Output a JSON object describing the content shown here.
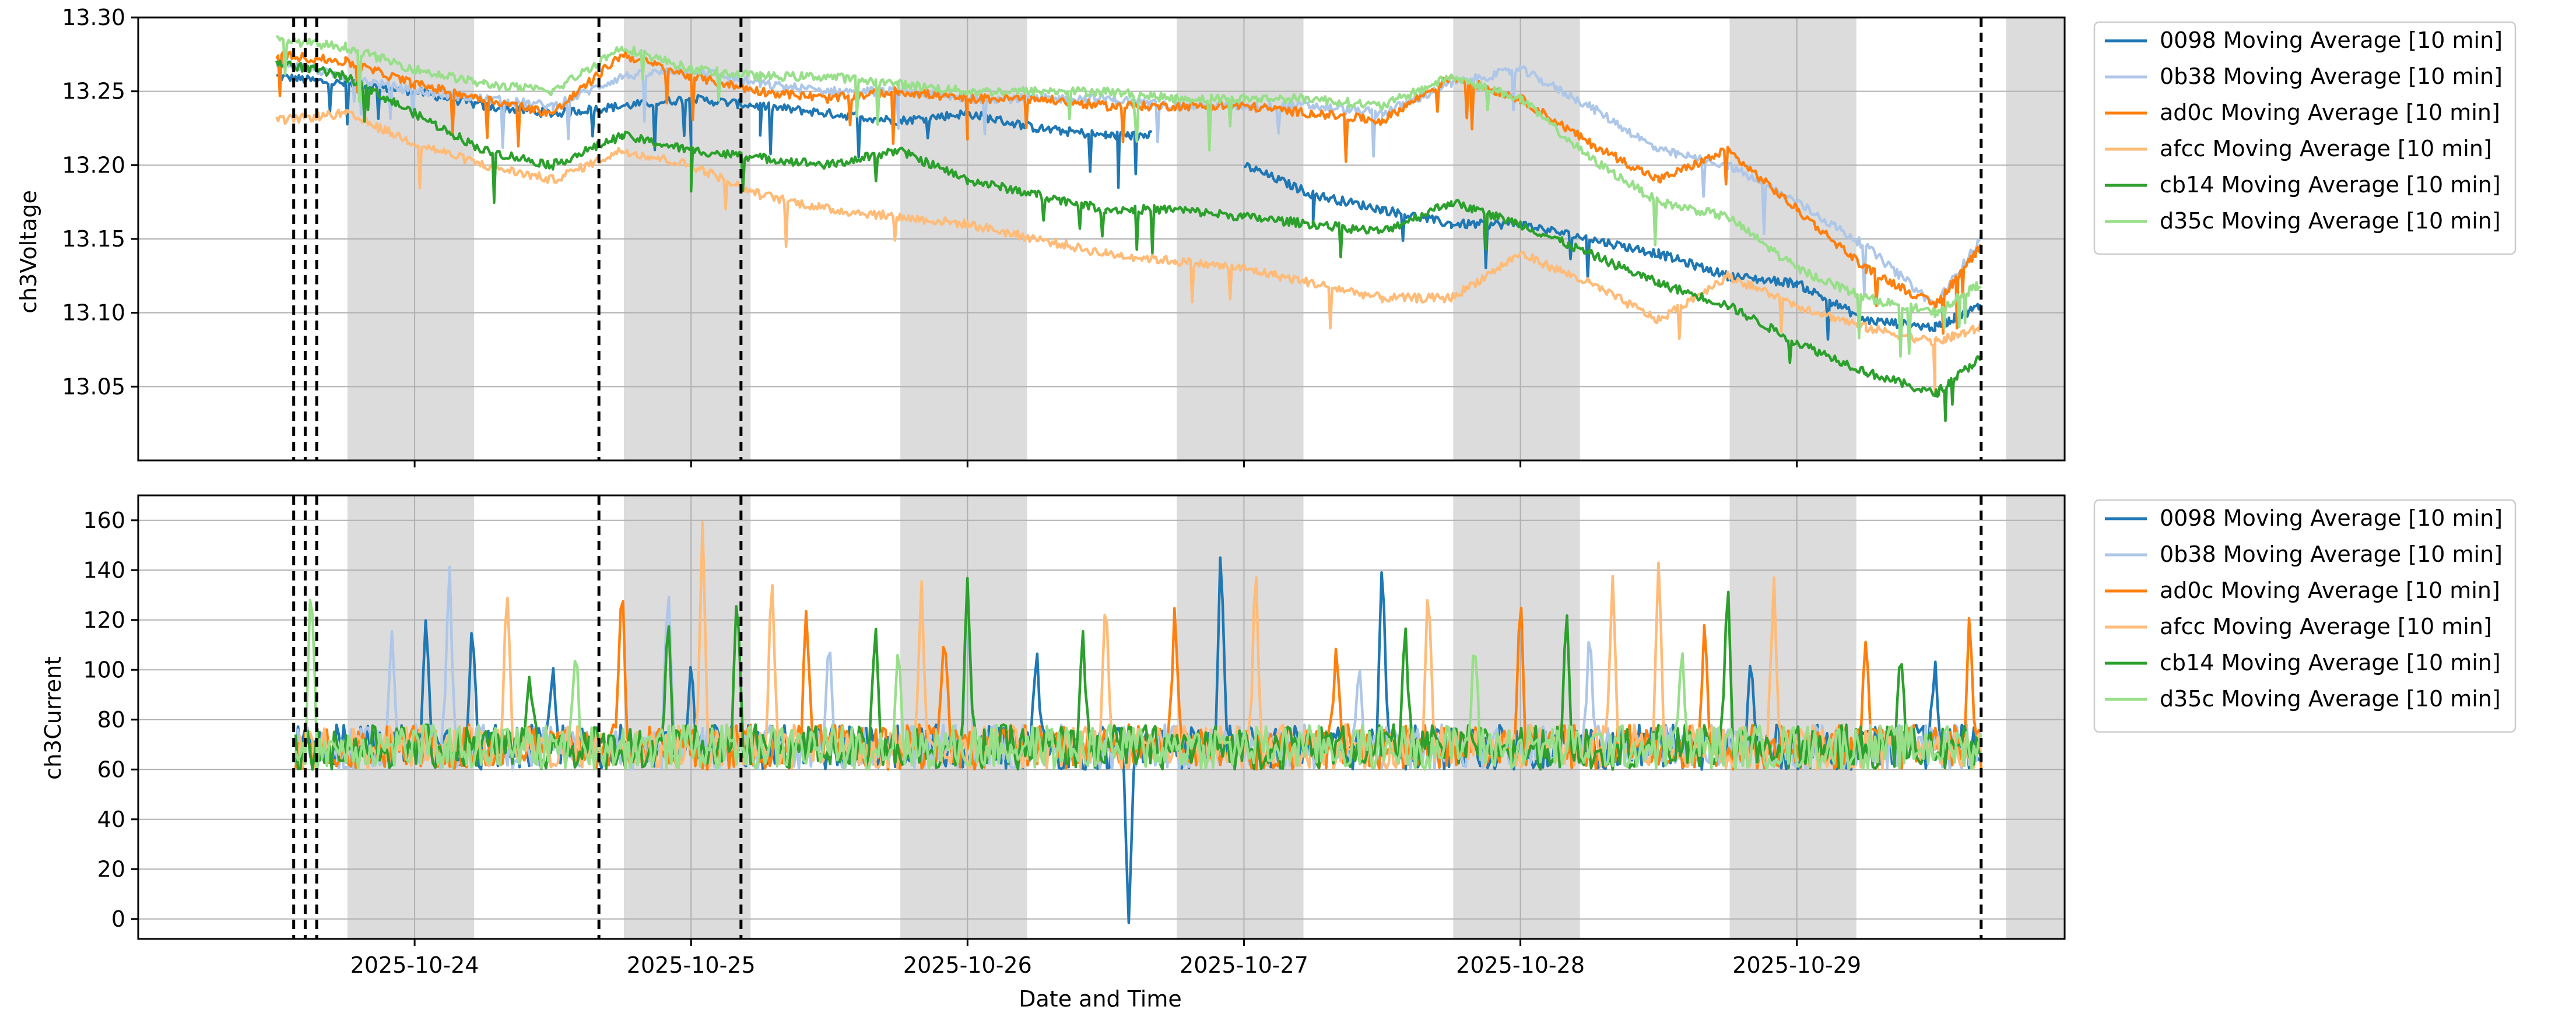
{
  "colors": {
    "0098": "#1f77b4",
    "0b38": "#aec7e8",
    "ad0c": "#ff7f0e",
    "afcc": "#ffbb78",
    "cb14": "#2ca02c",
    "d35c": "#98df8a",
    "night_shading": "#dcdcdc",
    "marker_line": "#000000",
    "grid": "#b0b0b0"
  },
  "chart_data": [
    {
      "type": "line",
      "ylabel": "ch3Voltage",
      "xlabel": "",
      "xlim": [
        "2025-10-23T00:00",
        "2025-10-29T23:15"
      ],
      "ylim": [
        13.0,
        13.3
      ],
      "yticks": [
        13.05,
        13.1,
        13.15,
        13.2,
        13.25,
        13.3
      ],
      "ytick_labels": [
        "13.05",
        "13.10",
        "13.15",
        "13.20",
        "13.25",
        "13.30"
      ],
      "grid": true,
      "legend_position": "outside-right-top",
      "series": [
        {
          "name": "0098 Moving Average [10 min]",
          "color_key": "0098",
          "x": [
            "2025-10-23T12:00",
            "2025-10-23T18:00",
            "2025-10-24T00:00",
            "2025-10-24T06:00",
            "2025-10-24T12:00",
            "2025-10-24T18:00",
            "2025-10-25T00:00",
            "2025-10-25T06:00",
            "2025-10-25T12:00",
            "2025-10-25T18:00",
            "2025-10-26T00:00",
            "2025-10-26T06:00",
            "2025-10-26T12:00",
            "2025-10-26T16:00",
            "2025-10-26T20:00",
            "2025-10-27T00:00",
            "2025-10-27T06:00",
            "2025-10-27T12:00",
            "2025-10-27T18:00",
            "2025-10-28T00:00",
            "2025-10-28T06:00",
            "2025-10-28T12:00",
            "2025-10-28T18:00",
            "2025-10-29T00:00",
            "2025-10-29T06:00",
            "2025-10-29T12:00",
            "2025-10-29T16:00"
          ],
          "y": [
            13.26,
            13.255,
            13.25,
            13.24,
            13.235,
            13.24,
            13.245,
            13.24,
            13.235,
            13.23,
            13.235,
            13.225,
            13.22,
            13.22,
            null,
            13.2,
            13.18,
            13.17,
            13.16,
            13.16,
            13.15,
            13.14,
            13.125,
            13.12,
            13.095,
            13.09,
            13.105
          ]
        },
        {
          "name": "0b38 Moving Average [10 min]",
          "color_key": "0b38",
          "x": [
            "2025-10-23T12:00",
            "2025-10-23T18:00",
            "2025-10-24T00:00",
            "2025-10-24T06:00",
            "2025-10-24T12:00",
            "2025-10-24T18:00",
            "2025-10-25T00:00",
            "2025-10-25T06:00",
            "2025-10-25T12:00",
            "2025-10-25T18:00",
            "2025-10-26T00:00",
            "2025-10-26T06:00",
            "2025-10-26T12:00",
            "2025-10-26T18:00",
            "2025-10-27T00:00",
            "2025-10-27T06:00",
            "2025-10-27T12:00",
            "2025-10-27T18:00",
            "2025-10-28T00:00",
            "2025-10-28T06:00",
            "2025-10-28T12:00",
            "2025-10-28T18:00",
            "2025-10-29T00:00",
            "2025-10-29T06:00",
            "2025-10-29T12:00",
            "2025-10-29T16:00"
          ],
          "y": [
            13.27,
            13.26,
            13.25,
            13.245,
            13.24,
            13.26,
            13.265,
            13.255,
            13.25,
            13.25,
            13.245,
            13.245,
            13.245,
            13.24,
            13.24,
            13.24,
            13.235,
            13.255,
            13.265,
            13.24,
            13.21,
            13.2,
            13.175,
            13.145,
            13.105,
            13.15
          ]
        },
        {
          "name": "ad0c Moving Average [10 min]",
          "color_key": "ad0c",
          "x": [
            "2025-10-23T12:00",
            "2025-10-23T18:00",
            "2025-10-24T00:00",
            "2025-10-24T06:00",
            "2025-10-24T12:00",
            "2025-10-24T18:00",
            "2025-10-25T00:00",
            "2025-10-25T06:00",
            "2025-10-25T12:00",
            "2025-10-25T18:00",
            "2025-10-26T00:00",
            "2025-10-26T06:00",
            "2025-10-26T12:00",
            "2025-10-26T18:00",
            "2025-10-27T00:00",
            "2025-10-27T06:00",
            "2025-10-27T12:00",
            "2025-10-27T18:00",
            "2025-10-28T00:00",
            "2025-10-28T06:00",
            "2025-10-28T12:00",
            "2025-10-28T18:00",
            "2025-10-29T00:00",
            "2025-10-29T06:00",
            "2025-10-29T12:00",
            "2025-10-29T16:00"
          ],
          "y": [
            13.275,
            13.27,
            13.255,
            13.245,
            13.235,
            13.275,
            13.26,
            13.25,
            13.245,
            13.25,
            13.245,
            13.245,
            13.24,
            13.24,
            13.24,
            13.235,
            13.23,
            13.26,
            13.245,
            13.215,
            13.19,
            13.21,
            13.17,
            13.13,
            13.105,
            13.145
          ]
        },
        {
          "name": "afcc Moving Average [10 min]",
          "color_key": "afcc",
          "x": [
            "2025-10-23T12:00",
            "2025-10-23T18:00",
            "2025-10-24T00:00",
            "2025-10-24T06:00",
            "2025-10-24T12:00",
            "2025-10-24T18:00",
            "2025-10-25T00:00",
            "2025-10-25T06:00",
            "2025-10-25T12:00",
            "2025-10-25T18:00",
            "2025-10-26T00:00",
            "2025-10-26T06:00",
            "2025-10-26T12:00",
            "2025-10-26T18:00",
            "2025-10-27T00:00",
            "2025-10-27T06:00",
            "2025-10-27T12:00",
            "2025-10-27T18:00",
            "2025-10-28T00:00",
            "2025-10-28T06:00",
            "2025-10-28T12:00",
            "2025-10-28T18:00",
            "2025-10-29T00:00",
            "2025-10-29T06:00",
            "2025-10-29T12:00",
            "2025-10-29T16:00"
          ],
          "y": [
            13.23,
            13.235,
            13.215,
            13.2,
            13.19,
            13.21,
            13.2,
            13.18,
            13.17,
            13.165,
            13.16,
            13.15,
            13.14,
            13.135,
            13.13,
            13.12,
            13.11,
            13.11,
            13.14,
            13.12,
            13.095,
            13.125,
            13.105,
            13.09,
            13.08,
            13.09
          ]
        },
        {
          "name": "cb14 Moving Average [10 min]",
          "color_key": "cb14",
          "x": [
            "2025-10-23T12:00",
            "2025-10-23T18:00",
            "2025-10-24T00:00",
            "2025-10-24T06:00",
            "2025-10-24T12:00",
            "2025-10-24T18:00",
            "2025-10-25T00:00",
            "2025-10-25T06:00",
            "2025-10-25T12:00",
            "2025-10-25T18:00",
            "2025-10-26T00:00",
            "2025-10-26T06:00",
            "2025-10-26T12:00",
            "2025-10-26T18:00",
            "2025-10-27T00:00",
            "2025-10-27T06:00",
            "2025-10-27T12:00",
            "2025-10-27T18:00",
            "2025-10-28T00:00",
            "2025-10-28T06:00",
            "2025-10-28T12:00",
            "2025-10-28T18:00",
            "2025-10-29T00:00",
            "2025-10-29T06:00",
            "2025-10-29T12:00",
            "2025-10-29T16:00"
          ],
          "y": [
            13.27,
            13.26,
            13.235,
            13.21,
            13.2,
            13.22,
            13.21,
            13.205,
            13.2,
            13.21,
            13.19,
            13.18,
            13.17,
            13.17,
            13.165,
            13.16,
            13.155,
            13.175,
            13.16,
            13.14,
            13.12,
            13.105,
            13.08,
            13.06,
            13.045,
            13.07
          ]
        },
        {
          "name": "d35c Moving Average [10 min]",
          "color_key": "d35c",
          "x": [
            "2025-10-23T12:00",
            "2025-10-23T18:00",
            "2025-10-24T00:00",
            "2025-10-24T06:00",
            "2025-10-24T12:00",
            "2025-10-24T18:00",
            "2025-10-25T00:00",
            "2025-10-25T06:00",
            "2025-10-25T12:00",
            "2025-10-25T18:00",
            "2025-10-26T00:00",
            "2025-10-26T06:00",
            "2025-10-26T12:00",
            "2025-10-26T18:00",
            "2025-10-27T00:00",
            "2025-10-27T06:00",
            "2025-10-27T12:00",
            "2025-10-27T18:00",
            "2025-10-28T00:00",
            "2025-10-28T06:00",
            "2025-10-28T12:00",
            "2025-10-28T18:00",
            "2025-10-29T00:00",
            "2025-10-29T06:00",
            "2025-10-29T12:00",
            "2025-10-29T16:00"
          ],
          "y": [
            13.285,
            13.28,
            13.265,
            13.255,
            13.25,
            13.28,
            13.265,
            13.26,
            13.26,
            13.255,
            13.25,
            13.25,
            13.25,
            13.245,
            13.245,
            13.245,
            13.24,
            13.26,
            13.245,
            13.205,
            13.175,
            13.165,
            13.13,
            13.11,
            13.1,
            13.12
          ]
        }
      ]
    },
    {
      "type": "line",
      "ylabel": "ch3Current",
      "xlabel": "Date and Time",
      "xlim": [
        "2025-10-23T00:00",
        "2025-10-29T23:15"
      ],
      "ylim": [
        -8,
        170
      ],
      "yticks": [
        0,
        20,
        40,
        60,
        80,
        100,
        120,
        140,
        160
      ],
      "ytick_labels": [
        "0",
        "20",
        "40",
        "60",
        "80",
        "100",
        "120",
        "140",
        "160"
      ],
      "grid": true,
      "legend_position": "outside-right-top",
      "baseline_range": [
        60,
        78
      ],
      "series": [
        {
          "name": "0098 Moving Average [10 min]",
          "color_key": "0098",
          "spikes": [
            [
              "2025-10-24T01:00",
              125
            ],
            [
              "2025-10-24T05:00",
              122
            ],
            [
              "2025-10-24T12:00",
              103
            ],
            [
              "2025-10-25T00:00",
              105
            ],
            [
              "2025-10-26T06:00",
              110
            ],
            [
              "2025-10-26T22:00",
              155
            ],
            [
              "2025-10-27T12:00",
              147
            ],
            [
              "2025-10-28T20:00",
              106
            ],
            [
              "2025-10-29T12:00",
              105
            ]
          ],
          "dips": [
            [
              "2025-10-26T14:00",
              -2
            ]
          ]
        },
        {
          "name": "0b38 Moving Average [10 min]",
          "color_key": "0b38",
          "spikes": [
            [
              "2025-10-23T22:00",
              118
            ],
            [
              "2025-10-24T03:00",
              148
            ],
            [
              "2025-10-24T22:00",
              140
            ],
            [
              "2025-10-25T12:00",
              115
            ],
            [
              "2025-10-26T00:00",
              130
            ],
            [
              "2025-10-27T10:00",
              105
            ],
            [
              "2025-10-28T06:00",
              120
            ]
          ],
          "dips": []
        },
        {
          "name": "ad0c Moving Average [10 min]",
          "color_key": "ad0c",
          "spikes": [
            [
              "2025-10-24T18:00",
              140
            ],
            [
              "2025-10-25T10:00",
              125
            ],
            [
              "2025-10-25T22:00",
              118
            ],
            [
              "2025-10-26T18:00",
              128
            ],
            [
              "2025-10-27T08:00",
              110
            ],
            [
              "2025-10-28T00:00",
              135
            ],
            [
              "2025-10-28T16:00",
              122
            ],
            [
              "2025-10-29T06:00",
              114
            ],
            [
              "2025-10-29T15:00",
              125
            ]
          ],
          "dips": []
        },
        {
          "name": "afcc Moving Average [10 min]",
          "color_key": "afcc",
          "spikes": [
            [
              "2025-10-24T08:00",
              138
            ],
            [
              "2025-10-25T01:00",
              160
            ],
            [
              "2025-10-25T07:00",
              142
            ],
            [
              "2025-10-25T20:00",
              138
            ],
            [
              "2025-10-26T12:00",
              135
            ],
            [
              "2025-10-27T01:00",
              148
            ],
            [
              "2025-10-27T16:00",
              139
            ],
            [
              "2025-10-28T08:00",
              140
            ],
            [
              "2025-10-28T12:00",
              145
            ],
            [
              "2025-10-28T22:00",
              140
            ]
          ],
          "dips": []
        },
        {
          "name": "cb14 Moving Average [10 min]",
          "color_key": "cb14",
          "spikes": [
            [
              "2025-10-24T10:00",
              100
            ],
            [
              "2025-10-24T22:00",
              125
            ],
            [
              "2025-10-25T04:00",
              135
            ],
            [
              "2025-10-25T16:00",
              122
            ],
            [
              "2025-10-26T00:00",
              138
            ],
            [
              "2025-10-26T10:00",
              118
            ],
            [
              "2025-10-27T14:00",
              120
            ],
            [
              "2025-10-28T04:00",
              126
            ],
            [
              "2025-10-28T18:00",
              138
            ],
            [
              "2025-10-29T09:00",
              110
            ]
          ],
          "dips": []
        },
        {
          "name": "d35c Moving Average [10 min]",
          "color_key": "d35c",
          "spikes": [
            [
              "2025-10-23T15:00",
              138
            ],
            [
              "2025-10-24T14:00",
              110
            ],
            [
              "2025-10-25T18:00",
              112
            ],
            [
              "2025-10-27T20:00",
              115
            ],
            [
              "2025-10-28T14:00",
              112
            ]
          ],
          "dips": []
        }
      ]
    }
  ],
  "shared_x": {
    "tick_values": [
      "2025-10-24T00:00",
      "2025-10-25T00:00",
      "2025-10-26T00:00",
      "2025-10-27T00:00",
      "2025-10-28T00:00",
      "2025-10-29T00:00"
    ],
    "tick_labels": [
      "2025-10-24",
      "2025-10-25",
      "2025-10-26",
      "2025-10-27",
      "2025-10-28",
      "2025-10-29"
    ],
    "night_spans": [
      [
        "2025-10-23T18:10",
        "2025-10-24T05:10"
      ],
      [
        "2025-10-24T18:10",
        "2025-10-25T05:10"
      ],
      [
        "2025-10-25T18:10",
        "2025-10-26T05:10"
      ],
      [
        "2025-10-26T18:10",
        "2025-10-27T05:10"
      ],
      [
        "2025-10-27T18:10",
        "2025-10-28T05:10"
      ],
      [
        "2025-10-28T18:10",
        "2025-10-29T05:10"
      ],
      [
        "2025-10-29T18:10",
        "2025-10-29T23:15"
      ]
    ],
    "marker_lines": [
      "2025-10-23T13:30",
      "2025-10-23T14:30",
      "2025-10-23T15:30",
      "2025-10-24T16:00",
      "2025-10-25T04:20",
      "2025-10-29T16:00"
    ]
  }
}
